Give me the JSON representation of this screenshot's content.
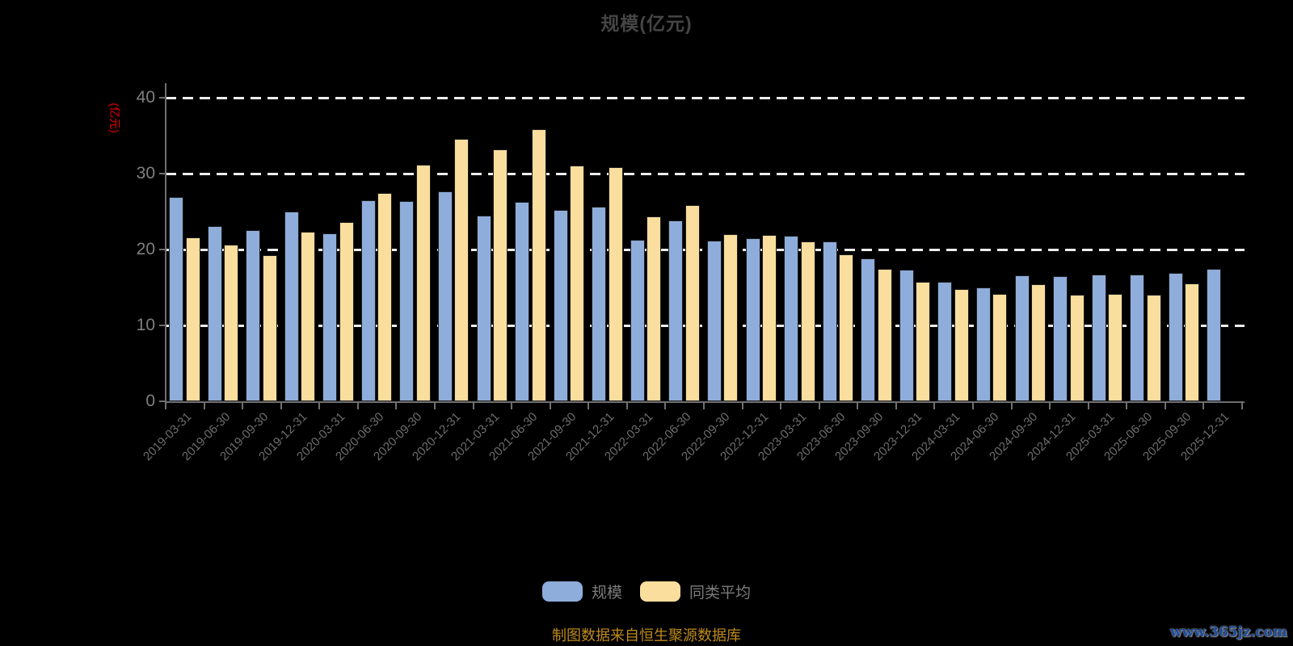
{
  "title": "规模(亿元)",
  "y_axis": {
    "unit_label": "(亿元)",
    "unit_color": "#e60000",
    "tick_labels": [
      "40",
      "30",
      "20",
      "10",
      "0"
    ]
  },
  "legend": {
    "items": [
      {
        "label": "规模",
        "color": "#8FADDB"
      },
      {
        "label": "同类平均",
        "color": "#FADE9E"
      }
    ]
  },
  "footer": {
    "source_note": "制图数据来自恒生聚源数据库",
    "watermark": "www.365jz.com"
  },
  "chart_data": {
    "type": "bar",
    "title": "规模(亿元)",
    "ylabel": "(亿元)",
    "ylim": [
      0,
      40
    ],
    "y_ticks": [
      0,
      10,
      20,
      30,
      40
    ],
    "grid": "horizontal-dashed-white",
    "legend_position": "bottom",
    "background": "#000000",
    "categories": [
      "2019-03-31",
      "2019-06-30",
      "2019-09-30",
      "2019-12-31",
      "2020-03-31",
      "2020-06-30",
      "2020-09-30",
      "2020-12-31",
      "2021-03-31",
      "2021-06-30",
      "2021-09-30",
      "2021-12-31",
      "2022-03-31",
      "2022-06-30",
      "2022-09-30",
      "2022-12-31",
      "2023-03-31",
      "2023-06-30",
      "2023-09-30",
      "2023-12-31",
      "2024-03-31",
      "2024-06-30",
      "2024-09-30",
      "2024-12-31",
      "2025-03-31",
      "2025-06-30",
      "2025-09-30",
      "2025-12-31"
    ],
    "series": [
      {
        "name": "规模",
        "color": "#8FADDB",
        "values": [
          26.9,
          23.1,
          22.6,
          25.0,
          22.1,
          26.5,
          26.4,
          27.7,
          24.5,
          26.3,
          25.2,
          25.6,
          21.3,
          23.8,
          21.2,
          21.5,
          21.8,
          21.1,
          18.8,
          17.3,
          15.7,
          15.0,
          16.6,
          16.5,
          16.7,
          16.7,
          16.9,
          17.5
        ]
      },
      {
        "name": "同类平均",
        "color": "#FADE9E",
        "values": [
          21.6,
          20.6,
          19.3,
          22.3,
          23.6,
          27.5,
          31.2,
          34.6,
          33.2,
          35.8,
          31.1,
          30.8,
          24.4,
          25.9,
          22.0,
          21.9,
          21.1,
          19.4,
          17.4,
          15.7,
          14.8,
          14.2,
          15.4,
          14.0,
          14.1,
          14.0,
          15.5,
          null
        ]
      }
    ]
  }
}
